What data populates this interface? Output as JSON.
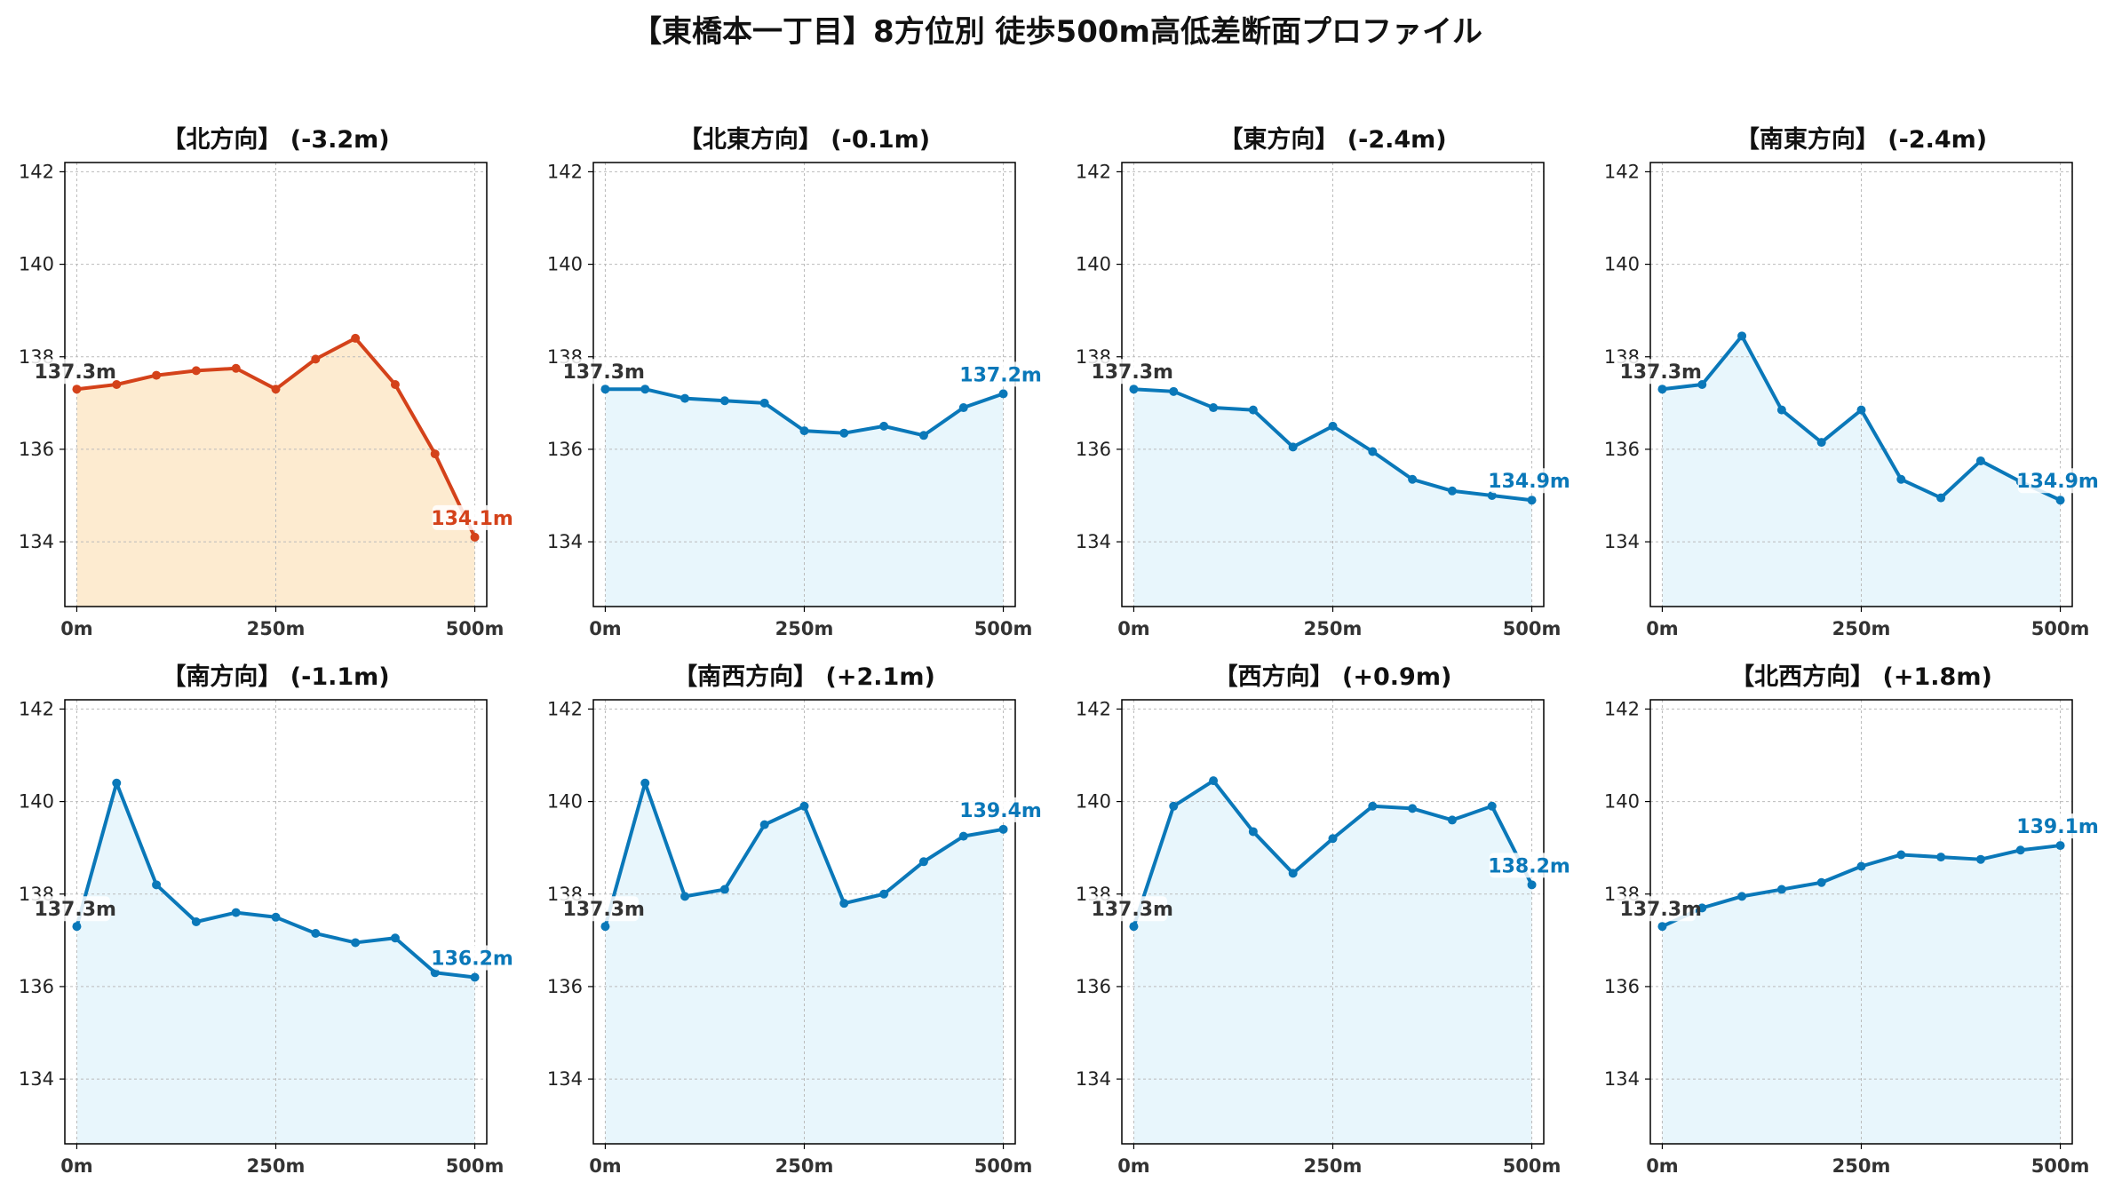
{
  "title": "【東橋本一丁目】8方位別 徒歩500m高低差断面プロファイル",
  "colors": {
    "highlight_line": "#d4421a",
    "highlight_fill": "#fdebd0",
    "normal_line": "#0a78b9",
    "normal_fill": "#e8f6fc",
    "start_label": "#333333",
    "grid": "#bbbbbb"
  },
  "chart_data": [
    {
      "type": "area",
      "title": "【北方向】 (-3.2m)",
      "highlight": true,
      "x": [
        0,
        50,
        100,
        150,
        200,
        250,
        300,
        350,
        400,
        450,
        500
      ],
      "y": [
        137.3,
        137.4,
        137.6,
        137.7,
        137.75,
        137.3,
        137.95,
        138.4,
        137.4,
        135.9,
        134.1
      ],
      "start_label": "137.3m",
      "end_label": "134.1m",
      "xticks": [
        "0m",
        "250m",
        "500m"
      ],
      "yticks": [
        "134",
        "136",
        "138",
        "140",
        "142"
      ],
      "ylim": [
        132.6,
        142.2
      ],
      "xlim": [
        -15,
        515
      ],
      "grid": true
    },
    {
      "type": "area",
      "title": "【北東方向】 (-0.1m)",
      "highlight": false,
      "x": [
        0,
        50,
        100,
        150,
        200,
        250,
        300,
        350,
        400,
        450,
        500
      ],
      "y": [
        137.3,
        137.3,
        137.1,
        137.05,
        137.0,
        136.4,
        136.35,
        136.5,
        136.3,
        136.9,
        137.2
      ],
      "start_label": "137.3m",
      "end_label": "137.2m",
      "xticks": [
        "0m",
        "250m",
        "500m"
      ],
      "yticks": [
        "134",
        "136",
        "138",
        "140",
        "142"
      ],
      "ylim": [
        132.6,
        142.2
      ],
      "xlim": [
        -15,
        515
      ],
      "grid": true
    },
    {
      "type": "area",
      "title": "【東方向】 (-2.4m)",
      "highlight": false,
      "x": [
        0,
        50,
        100,
        150,
        200,
        250,
        300,
        350,
        400,
        450,
        500
      ],
      "y": [
        137.3,
        137.25,
        136.9,
        136.85,
        136.05,
        136.5,
        135.95,
        135.35,
        135.1,
        135.0,
        134.9
      ],
      "start_label": "137.3m",
      "end_label": "134.9m",
      "xticks": [
        "0m",
        "250m",
        "500m"
      ],
      "yticks": [
        "134",
        "136",
        "138",
        "140",
        "142"
      ],
      "ylim": [
        132.6,
        142.2
      ],
      "xlim": [
        -15,
        515
      ],
      "grid": true
    },
    {
      "type": "area",
      "title": "【南東方向】 (-2.4m)",
      "highlight": false,
      "x": [
        0,
        50,
        100,
        150,
        200,
        250,
        300,
        350,
        400,
        450,
        500
      ],
      "y": [
        137.3,
        137.4,
        138.45,
        136.85,
        136.15,
        136.85,
        135.35,
        134.95,
        135.75,
        135.3,
        134.9
      ],
      "start_label": "137.3m",
      "end_label": "134.9m",
      "xticks": [
        "0m",
        "250m",
        "500m"
      ],
      "yticks": [
        "134",
        "136",
        "138",
        "140",
        "142"
      ],
      "ylim": [
        132.6,
        142.2
      ],
      "xlim": [
        -15,
        515
      ],
      "grid": true
    },
    {
      "type": "area",
      "title": "【南方向】 (-1.1m)",
      "highlight": false,
      "x": [
        0,
        50,
        100,
        150,
        200,
        250,
        300,
        350,
        400,
        450,
        500
      ],
      "y": [
        137.3,
        140.4,
        138.2,
        137.4,
        137.6,
        137.5,
        137.15,
        136.95,
        137.05,
        136.3,
        136.2
      ],
      "start_label": "137.3m",
      "end_label": "136.2m",
      "xticks": [
        "0m",
        "250m",
        "500m"
      ],
      "yticks": [
        "134",
        "136",
        "138",
        "140",
        "142"
      ],
      "ylim": [
        132.6,
        142.2
      ],
      "xlim": [
        -15,
        515
      ],
      "grid": true
    },
    {
      "type": "area",
      "title": "【南西方向】 (+2.1m)",
      "highlight": false,
      "x": [
        0,
        50,
        100,
        150,
        200,
        250,
        300,
        350,
        400,
        450,
        500
      ],
      "y": [
        137.3,
        140.4,
        137.95,
        138.1,
        139.5,
        139.9,
        137.8,
        138.0,
        138.7,
        139.25,
        139.4
      ],
      "start_label": "137.3m",
      "end_label": "139.4m",
      "xticks": [
        "0m",
        "250m",
        "500m"
      ],
      "yticks": [
        "134",
        "136",
        "138",
        "140",
        "142"
      ],
      "ylim": [
        132.6,
        142.2
      ],
      "xlim": [
        -15,
        515
      ],
      "grid": true
    },
    {
      "type": "area",
      "title": "【西方向】 (+0.9m)",
      "highlight": false,
      "x": [
        0,
        50,
        100,
        150,
        200,
        250,
        300,
        350,
        400,
        450,
        500
      ],
      "y": [
        137.3,
        139.9,
        140.45,
        139.35,
        138.45,
        139.2,
        139.9,
        139.85,
        139.6,
        139.9,
        138.2
      ],
      "start_label": "137.3m",
      "end_label": "138.2m",
      "xticks": [
        "0m",
        "250m",
        "500m"
      ],
      "yticks": [
        "134",
        "136",
        "138",
        "140",
        "142"
      ],
      "ylim": [
        132.6,
        142.2
      ],
      "xlim": [
        -15,
        515
      ],
      "grid": true
    },
    {
      "type": "area",
      "title": "【北西方向】 (+1.8m)",
      "highlight": false,
      "x": [
        0,
        50,
        100,
        150,
        200,
        250,
        300,
        350,
        400,
        450,
        500
      ],
      "y": [
        137.3,
        137.7,
        137.95,
        138.1,
        138.25,
        138.6,
        138.85,
        138.8,
        138.75,
        138.95,
        139.05
      ],
      "start_label": "137.3m",
      "end_label": "139.1m",
      "xticks": [
        "0m",
        "250m",
        "500m"
      ],
      "yticks": [
        "134",
        "136",
        "138",
        "140",
        "142"
      ],
      "ylim": [
        132.6,
        142.2
      ],
      "xlim": [
        -15,
        515
      ],
      "grid": true
    }
  ]
}
